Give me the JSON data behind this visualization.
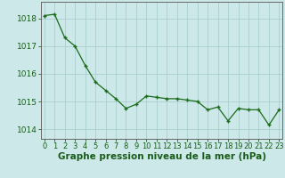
{
  "x": [
    0,
    1,
    2,
    3,
    4,
    5,
    6,
    7,
    8,
    9,
    10,
    11,
    12,
    13,
    14,
    15,
    16,
    17,
    18,
    19,
    20,
    21,
    22,
    23
  ],
  "y": [
    1018.1,
    1018.15,
    1017.3,
    1017.0,
    1016.3,
    1015.7,
    1015.4,
    1015.1,
    1014.75,
    1014.9,
    1015.2,
    1015.15,
    1015.1,
    1015.1,
    1015.05,
    1015.0,
    1014.7,
    1014.8,
    1014.3,
    1014.75,
    1014.7,
    1014.7,
    1014.15,
    1014.7
  ],
  "line_color": "#1a6b1a",
  "marker_color": "#1a6b1a",
  "bg_color": "#cce8e8",
  "plot_bg_color": "#cce8e8",
  "grid_color": "#aacece",
  "axis_label_color": "#1a5c1a",
  "ylabel_ticks": [
    1014,
    1015,
    1016,
    1017,
    1018
  ],
  "xtick_labels": [
    "0",
    "1",
    "2",
    "3",
    "4",
    "5",
    "6",
    "7",
    "8",
    "9",
    "10",
    "11",
    "12",
    "13",
    "14",
    "15",
    "16",
    "17",
    "18",
    "19",
    "20",
    "21",
    "22",
    "23"
  ],
  "xlabel": "Graphe pression niveau de la mer (hPa)",
  "ylim": [
    1013.65,
    1018.6
  ],
  "xlim": [
    -0.3,
    23.3
  ],
  "tick_fontsize": 6.5,
  "xlabel_fontsize": 7.5
}
